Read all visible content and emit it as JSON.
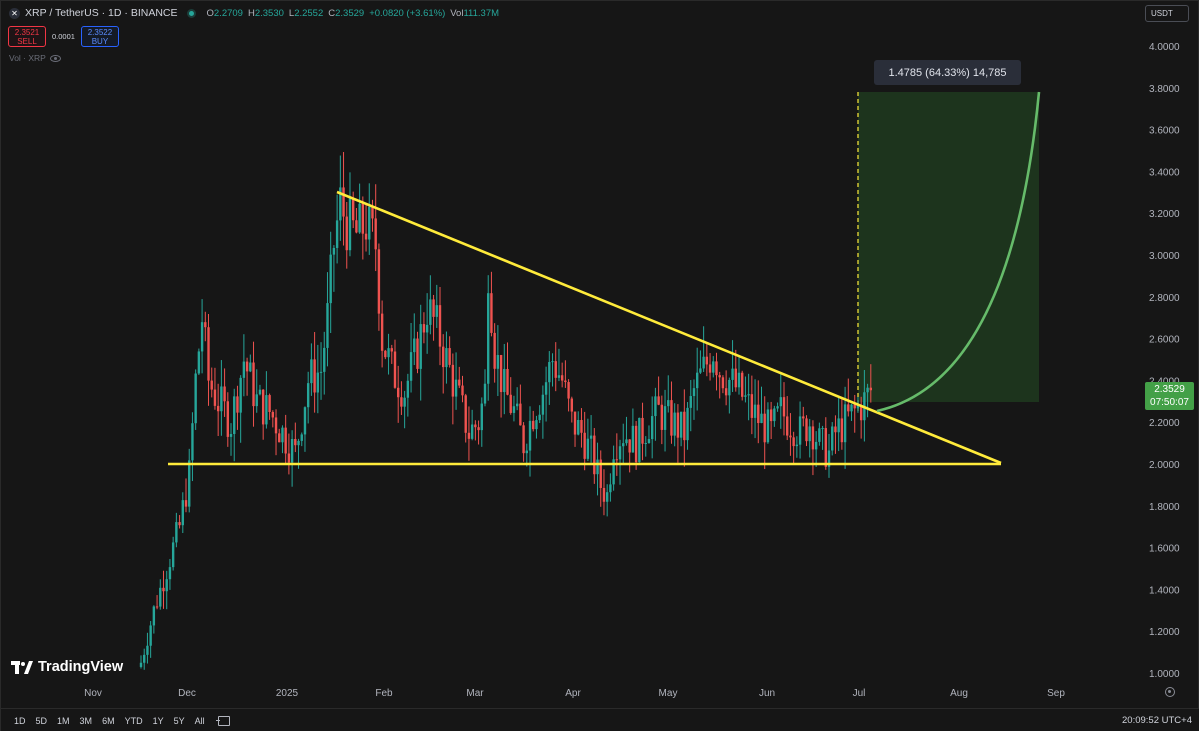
{
  "legend": {
    "symbol_icon": "xrp-icon",
    "title": "XRP / TetherUS · 1D · BINANCE",
    "ohlc": [
      {
        "k": "O",
        "v": "2.2709"
      },
      {
        "k": "H",
        "v": "2.3530"
      },
      {
        "k": "L",
        "v": "2.2552"
      },
      {
        "k": "C",
        "v": "2.3529"
      },
      {
        "k": "",
        "v": "+0.0820 (+3.61%)"
      },
      {
        "k": "Vol",
        "v": "111.37M"
      }
    ]
  },
  "trade": {
    "sell_price": "2.3521",
    "sell_label": "SELL",
    "spread": "0.0001",
    "buy_price": "2.3522",
    "buy_label": "BUY"
  },
  "volume_label": "Vol · XRP",
  "currency": "USDT",
  "measure_label": "1.4785 (64.33%) 14,785",
  "price_tag": {
    "price": "2.3529",
    "countdown": "07:50:07"
  },
  "brand": "TradingView",
  "timeframes": [
    "1D",
    "5D",
    "1M",
    "3M",
    "6M",
    "YTD",
    "1Y",
    "5Y",
    "All"
  ],
  "clock": "20:09:52 UTC+4",
  "colors": {
    "up": "#26a69a",
    "down": "#ef5350",
    "trendline": "#ffeb3b",
    "projection": "#66bb6a"
  },
  "chart_data": {
    "type": "candlestick",
    "symbol": "XRPUSDT",
    "interval": "1D",
    "y_ticks": [
      "4.0000",
      "3.8000",
      "3.6000",
      "3.4000",
      "3.2000",
      "3.0000",
      "2.8000",
      "2.6000",
      "2.4000",
      "2.2000",
      "2.0000",
      "1.8000",
      "1.6000",
      "1.4000",
      "1.2000",
      "1.0000"
    ],
    "ylim": [
      0.95,
      4.06
    ],
    "x_ticks": [
      "Nov",
      "Dec",
      "2025",
      "Feb",
      "Mar",
      "Apr",
      "May",
      "Jun",
      "Jul",
      "Aug",
      "Sep"
    ],
    "start_date": "2024-11-22",
    "close_path": [
      [
        0,
        1.05
      ],
      [
        4,
        1.3
      ],
      [
        8,
        1.5
      ],
      [
        12,
        1.7
      ],
      [
        15,
        1.95
      ],
      [
        17,
        2.4
      ],
      [
        19,
        2.7
      ],
      [
        21,
        2.4
      ],
      [
        24,
        2.3
      ],
      [
        28,
        2.2
      ],
      [
        32,
        2.5
      ],
      [
        36,
        2.3
      ],
      [
        40,
        2.25
      ],
      [
        44,
        2.15
      ],
      [
        48,
        2.05
      ],
      [
        52,
        2.4
      ],
      [
        56,
        2.45
      ],
      [
        58,
        2.7
      ],
      [
        60,
        3.05
      ],
      [
        62,
        3.25
      ],
      [
        64,
        3.15
      ],
      [
        67,
        3.1
      ],
      [
        70,
        3.15
      ],
      [
        73,
        3.05
      ],
      [
        75,
        2.6
      ],
      [
        78,
        2.45
      ],
      [
        82,
        2.35
      ],
      [
        86,
        2.55
      ],
      [
        89,
        2.75
      ],
      [
        92,
        2.65
      ],
      [
        96,
        2.45
      ],
      [
        99,
        2.3
      ],
      [
        102,
        2.15
      ],
      [
        105,
        2.2
      ],
      [
        107,
        2.35
      ],
      [
        108,
        2.95
      ],
      [
        110,
        2.55
      ],
      [
        113,
        2.35
      ],
      [
        116,
        2.25
      ],
      [
        119,
        2.1
      ],
      [
        122,
        2.25
      ],
      [
        125,
        2.35
      ],
      [
        128,
        2.5
      ],
      [
        131,
        2.4
      ],
      [
        134,
        2.2
      ],
      [
        137,
        2.15
      ],
      [
        140,
        2.05
      ],
      [
        143,
        1.9
      ],
      [
        145,
        1.85
      ],
      [
        147,
        2.1
      ],
      [
        150,
        2.15
      ],
      [
        154,
        2.1
      ],
      [
        158,
        2.2
      ],
      [
        161,
        2.25
      ],
      [
        165,
        2.2
      ],
      [
        169,
        2.15
      ],
      [
        172,
        2.35
      ],
      [
        175,
        2.45
      ],
      [
        178,
        2.55
      ],
      [
        180,
        2.45
      ],
      [
        183,
        2.4
      ],
      [
        186,
        2.35
      ],
      [
        190,
        2.25
      ],
      [
        193,
        2.2
      ],
      [
        196,
        2.15
      ],
      [
        199,
        2.25
      ],
      [
        202,
        2.2
      ],
      [
        205,
        2.15
      ],
      [
        208,
        2.2
      ],
      [
        211,
        2.1
      ],
      [
        214,
        2.05
      ],
      [
        216,
        2.15
      ],
      [
        219,
        2.2
      ],
      [
        222,
        2.25
      ],
      [
        225,
        2.3
      ],
      [
        227,
        2.35
      ]
    ],
    "trendlines": [
      {
        "from": [
          "2025-01-16",
          3.3
        ],
        "to": [
          "2025-08-14",
          2.0
        ],
        "label": ""
      },
      {
        "from": [
          "2024-12-01",
          2.0
        ],
        "to": [
          "2025-08-14",
          2.0
        ],
        "label": ""
      }
    ],
    "projection_curve": {
      "from": [
        "2025-07-07",
        2.26
      ],
      "to": [
        "2025-08-24",
        3.78
      ]
    },
    "measure_box": {
      "from": [
        "2025-07-07",
        2.3
      ],
      "to": [
        "2025-08-24",
        3.78
      ],
      "change": 1.4785,
      "change_pct": 64.33,
      "ticks": 14785
    }
  }
}
